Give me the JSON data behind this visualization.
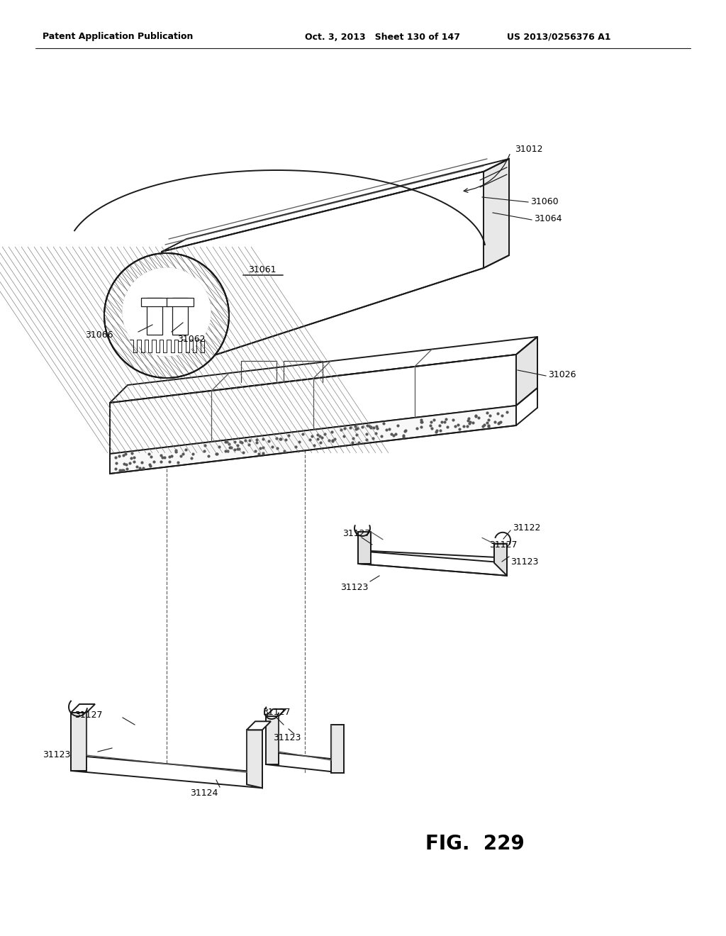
{
  "bg_color": "#ffffff",
  "header_left": "Patent Application Publication",
  "header_mid": "Oct. 3, 2013   Sheet 130 of 147",
  "header_right": "US 2013/0256376 A1",
  "fig_label": "FIG.  229"
}
